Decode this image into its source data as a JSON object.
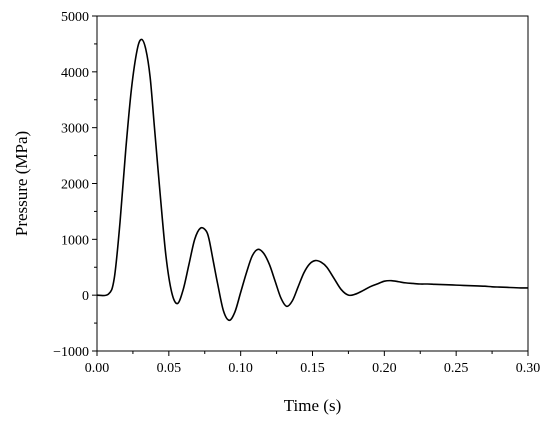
{
  "chart_data": {
    "type": "line",
    "title": "",
    "xlabel": "Time (s)",
    "ylabel": "Pressure (MPa)",
    "xlim": [
      0.0,
      0.3
    ],
    "ylim": [
      -1000,
      5000
    ],
    "x_ticks": [
      "0.00",
      "0.05",
      "0.10",
      "0.15",
      "0.20",
      "0.25",
      "0.30"
    ],
    "y_ticks": [
      "−1000",
      "0",
      "1000",
      "2000",
      "3000",
      "4000",
      "5000"
    ],
    "grid": false,
    "legend": "none",
    "line_color": "#000000",
    "series": [
      {
        "x": [
          0.0,
          0.008,
          0.012,
          0.016,
          0.02,
          0.024,
          0.028,
          0.031,
          0.034,
          0.037,
          0.04,
          0.044,
          0.048,
          0.052,
          0.056,
          0.06,
          0.064,
          0.068,
          0.072,
          0.076,
          0.078,
          0.081,
          0.084,
          0.088,
          0.092,
          0.096,
          0.1,
          0.104,
          0.108,
          0.112,
          0.116,
          0.12,
          0.124,
          0.128,
          0.132,
          0.136,
          0.14,
          0.144,
          0.148,
          0.152,
          0.156,
          0.16,
          0.165,
          0.17,
          0.175,
          0.18,
          0.185,
          0.19,
          0.195,
          0.2,
          0.205,
          0.21,
          0.215,
          0.22,
          0.225,
          0.23,
          0.235,
          0.24,
          0.245,
          0.25,
          0.255,
          0.26,
          0.265,
          0.27,
          0.275,
          0.28,
          0.285,
          0.29,
          0.295,
          0.3
        ],
        "y": [
          0,
          20,
          300,
          1300,
          2600,
          3700,
          4400,
          4580,
          4400,
          3900,
          3000,
          1800,
          700,
          50,
          -150,
          100,
          550,
          1000,
          1200,
          1150,
          1000,
          600,
          200,
          -280,
          -450,
          -300,
          50,
          400,
          700,
          820,
          750,
          550,
          250,
          -50,
          -200,
          -100,
          150,
          400,
          560,
          620,
          590,
          500,
          300,
          100,
          0,
          20,
          80,
          150,
          200,
          250,
          260,
          240,
          220,
          210,
          200,
          200,
          195,
          190,
          185,
          180,
          175,
          170,
          165,
          160,
          150,
          145,
          140,
          135,
          130,
          130
        ]
      }
    ]
  }
}
